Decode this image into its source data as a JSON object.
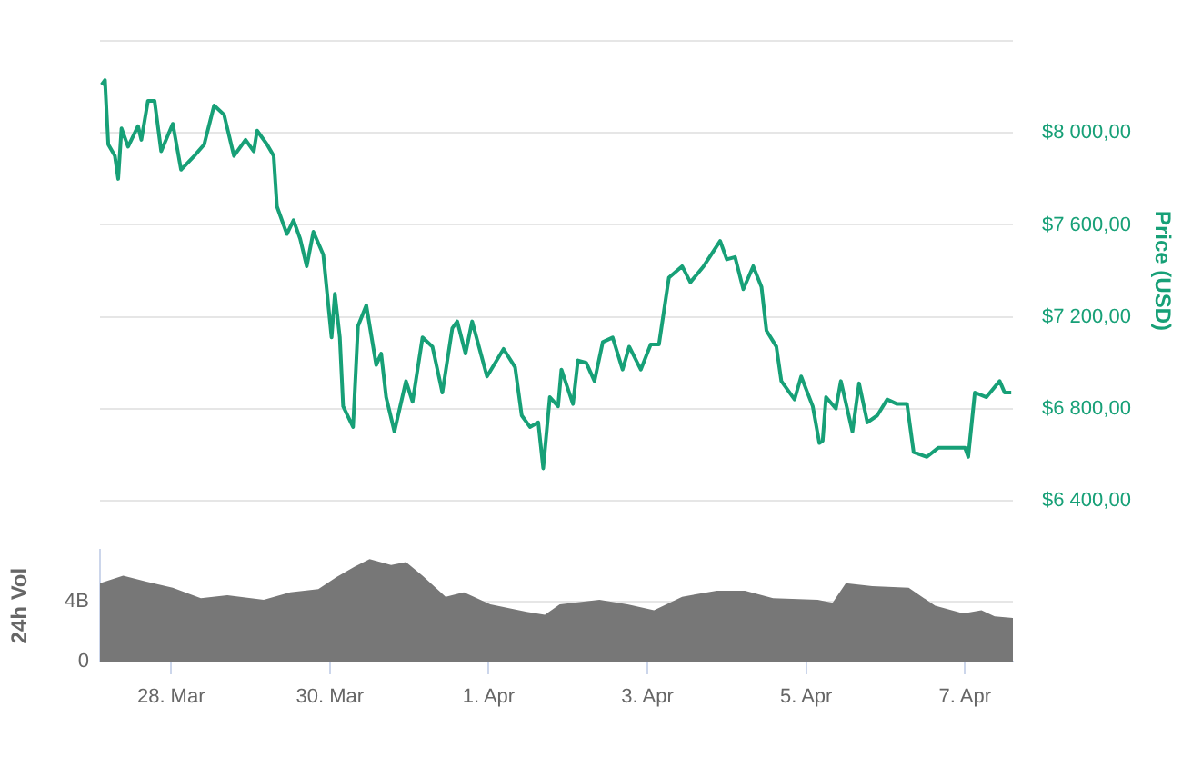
{
  "chart_data": [
    {
      "type": "line",
      "y2label": "Price (USD)",
      "xlim": [
        "--03-27T02:30",
        "--04-07T14:30"
      ],
      "y2lim": [
        6400,
        8400
      ],
      "y2ticks": [
        {
          "value": 6400,
          "label": "$6 400,00"
        },
        {
          "value": 6800,
          "label": "$6 800,00"
        },
        {
          "value": 7200,
          "label": "$7 200,00"
        },
        {
          "value": 7600,
          "label": "$7 600,00"
        },
        {
          "value": 8000,
          "label": "$8 000,00"
        },
        {
          "value": 8400,
          "label": null
        }
      ],
      "grid": "y",
      "tick_labels": "y",
      "series": [
        {
          "axis": "y2",
          "color": "#17a077",
          "x": [
            "--03-27T03:00",
            "--03-27T04:00",
            "--03-27T05:00",
            "--03-27T07:00",
            "--03-27T08:00",
            "--03-27T09:00",
            "--03-27T11:00",
            "--03-27T14:00",
            "--03-27T15:00",
            "--03-27T17:00",
            "--03-27T19:00",
            "--03-27T21:00",
            "--03-28T00:30",
            "--03-28T03:00",
            "--03-28T07:00",
            "--03-28T10:00",
            "--03-28T13:00",
            "--03-28T16:00",
            "--03-28T19:00",
            "--03-28T22:30",
            "--03-29T01:00",
            "--03-29T02:00",
            "--03-29T05:00",
            "--03-29T07:00",
            "--03-29T08:00",
            "--03-29T11:00",
            "--03-29T13:00",
            "--03-29T15:00",
            "--03-29T17:00",
            "--03-29T19:00",
            "--03-29T22:00",
            "--03-30T00:30",
            "--03-30T01:30",
            "--03-30T03:00",
            "--03-30T04:00",
            "--03-30T07:00",
            "--03-30T08:30",
            "--03-30T11:00",
            "--03-30T14:00",
            "--03-30T15:30",
            "--03-30T17:00",
            "--03-30T19:30",
            "--03-30T23:00",
            "--03-31T01:00",
            "--03-31T04:00",
            "--03-31T07:00",
            "--03-31T10:00",
            "--03-31T13:00",
            "--03-31T14:30",
            "--03-31T17:00",
            "--03-31T19:00",
            "--03-31T23:30",
            "--04-01T04:30",
            "--04-01T08:00",
            "--04-01T10:00",
            "--04-01T12:30",
            "--04-01T15:00",
            "--04-01T16:30",
            "--04-01T18:30",
            "--04-01T21:00",
            "--04-01T22:00",
            "--04-02T01:30",
            "--04-02T03:00",
            "--04-02T05:30",
            "--04-02T08:00",
            "--04-02T10:30",
            "--04-02T13:30",
            "--04-02T16:30",
            "--04-02T18:30",
            "--04-02T22:00",
            "--04-03T01:00",
            "--04-03T03:30",
            "--04-03T06:30",
            "--04-03T10:30",
            "--04-03T13:00",
            "--04-03T17:00",
            "--04-03T22:00",
            "--04-04T00:00",
            "--04-04T02:30",
            "--04-04T05:00",
            "--04-04T08:00",
            "--04-04T10:30",
            "--04-04T12:00",
            "--04-04T15:00",
            "--04-04T16:30",
            "--04-04T20:30",
            "--04-04T22:30",
            "--04-05T02:00",
            "--04-05T04:00",
            "--04-05T05:00",
            "--04-05T06:00",
            "--04-05T09:00",
            "--04-05T10:30",
            "--04-05T14:00",
            "--04-05T16:00",
            "--04-05T18:30",
            "--04-05T21:30",
            "--04-06T00:30",
            "--04-06T03:30",
            "--04-06T06:30",
            "--04-06T08:30",
            "--04-06T12:30",
            "--04-06T16:00",
            "--04-06T19:30",
            "--04-07T00:00",
            "--04-07T01:00",
            "--04-07T03:00",
            "--04-07T06:30",
            "--04-07T10:30",
            "--04-07T12:00",
            "--04-07T14:00"
          ],
          "values": [
            8210,
            8230,
            7950,
            7900,
            7800,
            8020,
            7940,
            8030,
            7970,
            8140,
            8140,
            7920,
            8040,
            7840,
            7900,
            7950,
            8120,
            8080,
            7900,
            7970,
            7920,
            8010,
            7950,
            7900,
            7680,
            7560,
            7620,
            7540,
            7420,
            7570,
            7470,
            7110,
            7300,
            7110,
            6810,
            6720,
            7160,
            7250,
            6990,
            7040,
            6850,
            6700,
            6920,
            6830,
            7110,
            7070,
            6870,
            7150,
            7180,
            7040,
            7180,
            6940,
            7060,
            6980,
            6770,
            6720,
            6740,
            6540,
            6850,
            6810,
            6970,
            6820,
            7010,
            7000,
            6920,
            7090,
            7110,
            6970,
            7070,
            6970,
            7080,
            7080,
            7370,
            7420,
            7350,
            7420,
            7530,
            7450,
            7460,
            7320,
            7420,
            7330,
            7140,
            7070,
            6920,
            6840,
            6940,
            6810,
            6650,
            6660,
            6850,
            6800,
            6920,
            6700,
            6910,
            6740,
            6770,
            6840,
            6820,
            6820,
            6610,
            6590,
            6630,
            6630,
            6630,
            6590,
            6870,
            6850,
            6920,
            6870,
            6870
          ]
        }
      ]
    },
    {
      "type": "area",
      "ylabel": "24h Vol",
      "xlim": [
        "--03-27T02:30",
        "--04-07T14:30"
      ],
      "xticks": [
        {
          "value": "--03-28",
          "label": "28. Mar"
        },
        {
          "value": "--03-30",
          "label": "30. Mar"
        },
        {
          "value": "--04-01",
          "label": "1. Apr"
        },
        {
          "value": "--04-03",
          "label": "3. Apr"
        },
        {
          "value": "--04-05",
          "label": "5. Apr"
        },
        {
          "value": "--04-07",
          "label": "7. Apr"
        }
      ],
      "ylim": [
        0,
        7.4
      ],
      "yticks": [
        0,
        {
          "value": 4,
          "label": "4B"
        }
      ],
      "grid": "y",
      "series": [
        {
          "color": "#777777",
          "x": [
            "--03-27T02:30",
            "--03-27T09:30",
            "--03-27T16:30",
            "--03-28T00:30",
            "--03-28T09:00",
            "--03-28T17:00",
            "--03-29T04:00",
            "--03-29T12:00",
            "--03-29T20:30",
            "--03-30T02:00",
            "--03-30T07:30",
            "--03-30T12:00",
            "--03-30T18:30",
            "--03-30T23:00",
            "--03-31T04:00",
            "--03-31T11:00",
            "--03-31T16:30",
            "--04-01T00:30",
            "--04-01T11:30",
            "--04-01T17:00",
            "--04-01T21:30",
            "--04-02T09:30",
            "--04-02T18:00",
            "--04-03T02:00",
            "--04-03T10:30",
            "--04-03T21:00",
            "--04-04T05:30",
            "--04-04T14:00",
            "--04-05T03:30",
            "--04-05T08:00",
            "--04-05T12:00",
            "--04-05T20:00",
            "--04-06T07:00",
            "--04-06T15:00",
            "--04-06T23:30",
            "--04-07T05:00",
            "--04-07T09:00",
            "--04-07T14:30"
          ],
          "values": [
            5.2,
            5.7,
            5.3,
            4.9,
            4.2,
            4.4,
            4.1,
            4.6,
            4.8,
            5.6,
            6.3,
            6.8,
            6.4,
            6.6,
            5.7,
            4.3,
            4.6,
            3.8,
            3.3,
            3.1,
            3.8,
            4.1,
            3.8,
            3.4,
            4.3,
            4.7,
            4.7,
            4.2,
            4.1,
            3.9,
            5.2,
            5.0,
            4.9,
            3.7,
            3.2,
            3.4,
            3.0,
            2.9
          ]
        }
      ]
    }
  ]
}
